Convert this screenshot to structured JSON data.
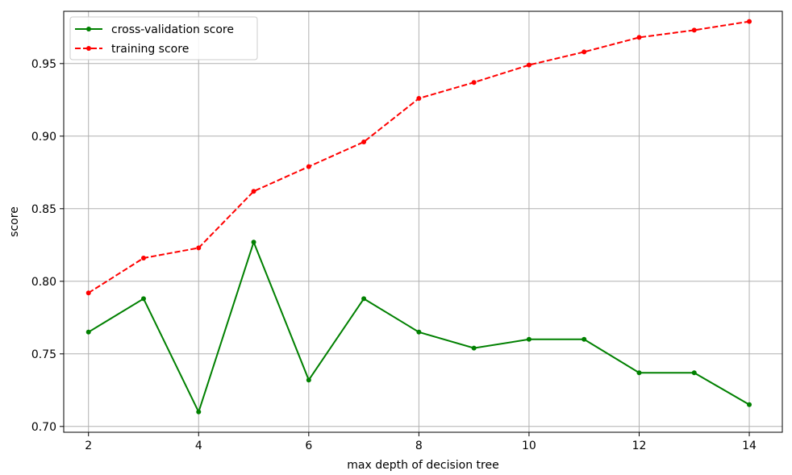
{
  "chart_data": {
    "type": "line",
    "title": "",
    "xlabel": "max depth of decision tree",
    "ylabel": "score",
    "x": [
      2,
      3,
      4,
      5,
      6,
      7,
      8,
      9,
      10,
      11,
      12,
      13,
      14
    ],
    "xlim": [
      1.55,
      14.6
    ],
    "ylim": [
      0.696,
      0.986
    ],
    "xticks": [
      2,
      4,
      6,
      8,
      10,
      12,
      14
    ],
    "yticks": [
      0.7,
      0.75,
      0.8,
      0.85,
      0.9,
      0.95
    ],
    "ytick_labels": [
      "0.70",
      "0.75",
      "0.80",
      "0.85",
      "0.90",
      "0.95"
    ],
    "grid": true,
    "legend": "top-left",
    "series": [
      {
        "name": "cross-validation score",
        "color": "#008000",
        "dash": "solid",
        "marker": "circle",
        "values": [
          0.765,
          0.788,
          0.71,
          0.827,
          0.732,
          0.788,
          0.765,
          0.754,
          0.76,
          0.76,
          0.737,
          0.737,
          0.715
        ]
      },
      {
        "name": "training score",
        "color": "#ff0000",
        "dash": "dashed",
        "marker": "circle",
        "values": [
          0.792,
          0.816,
          0.823,
          0.862,
          0.879,
          0.896,
          0.926,
          0.937,
          0.949,
          0.958,
          0.968,
          0.973,
          0.979
        ]
      }
    ]
  }
}
